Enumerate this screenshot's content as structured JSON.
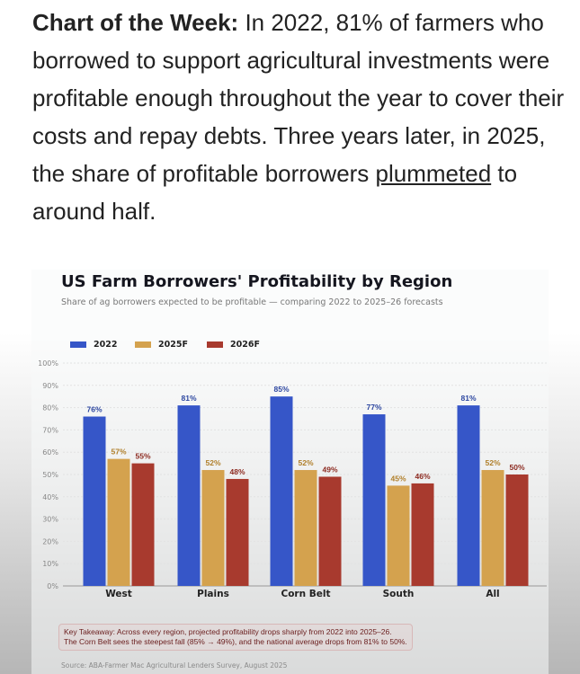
{
  "intro": {
    "bold": "Chart of the Week:",
    "text1": " In 2022, 81% of farmers who borrowed to support agricultural investments were profitable enough throughout the year to cover their costs and repay debts. Three years later, in 2025, the share of profitable borrowers ",
    "link": "plummeted",
    "text2": " to around half."
  },
  "chart_data": {
    "type": "bar",
    "title": "US Farm Borrowers' Profitability by Region",
    "subtitle": "Share of ag borrowers expected to be profitable — comparing 2022 to 2025–26 forecasts",
    "categories": [
      "West",
      "Plains",
      "Corn Belt",
      "South",
      "All"
    ],
    "series": [
      {
        "name": "2022",
        "color": "#3656c8",
        "values": [
          76,
          81,
          85,
          77,
          81
        ]
      },
      {
        "name": "2025F",
        "color": "#d4a24e",
        "values": [
          57,
          52,
          52,
          45,
          52
        ]
      },
      {
        "name": "2026F",
        "color": "#a83a2e",
        "values": [
          55,
          48,
          49,
          46,
          50
        ]
      }
    ],
    "ylim": [
      0,
      100
    ],
    "yticks": [
      "0%",
      "10%",
      "20%",
      "30%",
      "40%",
      "50%",
      "60%",
      "70%",
      "80%",
      "90%",
      "100%"
    ],
    "grid": true,
    "legend": "top-left",
    "takeaway": [
      "Key Takeaway: Across every region, projected profitability drops sharply from 2022 into 2025–26.",
      "The Corn Belt sees the steepest fall (85% → 49%), and the national average drops from 81% to 50%."
    ],
    "source": "Source: ABA-Farmer Mac Agricultural Lenders Survey, August 2025"
  }
}
